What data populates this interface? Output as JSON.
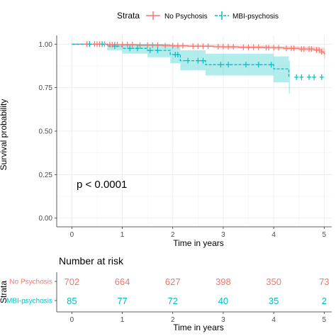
{
  "chart_data": {
    "type": "line",
    "subtype": "kaplan-meier",
    "xlabel": "Time in years",
    "ylabel": "Survival probability",
    "xlim": [
      -0.3,
      5.15
    ],
    "ylim": [
      -0.05,
      1.05
    ],
    "x_ticks": [
      "0",
      "1",
      "2",
      "3",
      "4",
      "5"
    ],
    "y_ticks": [
      "0.00",
      "0.25",
      "0.50",
      "0.75",
      "1.00"
    ],
    "grid": true,
    "annotation": "p < 0.0001",
    "legend": {
      "title": "Strata",
      "placement": "top",
      "entries": [
        "No Psychosis",
        "MBI-psychosis"
      ]
    },
    "series": [
      {
        "name": "No Psychosis",
        "color": "#F8766D",
        "linestyle": "solid",
        "steps": [
          [
            0,
            1.0
          ],
          [
            0.7,
            0.997
          ],
          [
            1.3,
            0.994
          ],
          [
            1.8,
            0.991
          ],
          [
            2.3,
            0.988
          ],
          [
            2.8,
            0.985
          ],
          [
            3.3,
            0.982
          ],
          [
            3.8,
            0.979
          ],
          [
            4.2,
            0.976
          ],
          [
            4.5,
            0.972
          ],
          [
            4.8,
            0.966
          ],
          [
            4.95,
            0.955
          ],
          [
            5.0,
            0.945
          ]
        ],
        "ci": [
          [
            0,
            1.0,
            1.0
          ],
          [
            1.0,
            0.99,
            1.0
          ],
          [
            2.0,
            0.983,
            0.996
          ],
          [
            3.0,
            0.975,
            0.992
          ],
          [
            4.0,
            0.968,
            0.988
          ],
          [
            4.5,
            0.96,
            0.985
          ],
          [
            4.9,
            0.945,
            0.98
          ],
          [
            5.0,
            0.915,
            0.975
          ]
        ],
        "censor_x": [
          0.3,
          0.35,
          0.45,
          0.5,
          0.55,
          0.65,
          0.75,
          0.8,
          0.85,
          0.9,
          1.0,
          1.1,
          1.2,
          1.35,
          1.5,
          1.6,
          1.7,
          1.85,
          2.0,
          2.1,
          2.2,
          2.4,
          2.5,
          2.6,
          2.7,
          2.9,
          3.0,
          3.1,
          3.2,
          3.4,
          3.5,
          3.6,
          3.7,
          3.85,
          3.9,
          4.0,
          4.1,
          4.25,
          4.35,
          4.4,
          4.55,
          4.6,
          4.7,
          4.75,
          4.85,
          4.9,
          4.95
        ]
      },
      {
        "name": "MBI-psychosis",
        "color": "#00BFC4",
        "linestyle": "dashed",
        "steps": [
          [
            0,
            1.0
          ],
          [
            0.7,
            0.988
          ],
          [
            1.0,
            0.976
          ],
          [
            1.5,
            0.964
          ],
          [
            1.95,
            0.94
          ],
          [
            2.15,
            0.905
          ],
          [
            2.65,
            0.882
          ],
          [
            4.0,
            0.858
          ],
          [
            4.3,
            0.81
          ]
        ],
        "ci": [
          [
            0,
            1.0,
            1.0
          ],
          [
            0.7,
            0.965,
            1.0
          ],
          [
            1.0,
            0.945,
            1.0
          ],
          [
            1.5,
            0.925,
            1.0
          ],
          [
            1.95,
            0.89,
            0.99
          ],
          [
            2.15,
            0.85,
            0.965
          ],
          [
            2.65,
            0.82,
            0.945
          ],
          [
            4.0,
            0.78,
            0.93
          ],
          [
            4.3,
            0.715,
            0.905
          ]
        ],
        "censor_x": [
          0.35,
          0.6,
          0.85,
          1.15,
          1.3,
          1.55,
          1.7,
          2.05,
          2.1,
          2.3,
          2.5,
          2.6,
          2.95,
          3.1,
          3.45,
          3.7,
          3.95,
          4.45,
          4.55,
          4.7,
          4.8,
          4.95
        ]
      }
    ],
    "risk_table": {
      "title": "Number at risk",
      "ylabel": "Strata",
      "xlabel": "Time in years",
      "x_ticks": [
        "0",
        "1",
        "2",
        "3",
        "4",
        "5"
      ],
      "rows": [
        {
          "name": "No Psychosis",
          "color": "#F8766D",
          "values": [
            "702",
            "664",
            "627",
            "398",
            "350",
            "73"
          ]
        },
        {
          "name": "MBI-psychosis",
          "color": "#00BFC4",
          "values": [
            "85",
            "77",
            "72",
            "40",
            "35",
            "2"
          ]
        }
      ]
    }
  }
}
